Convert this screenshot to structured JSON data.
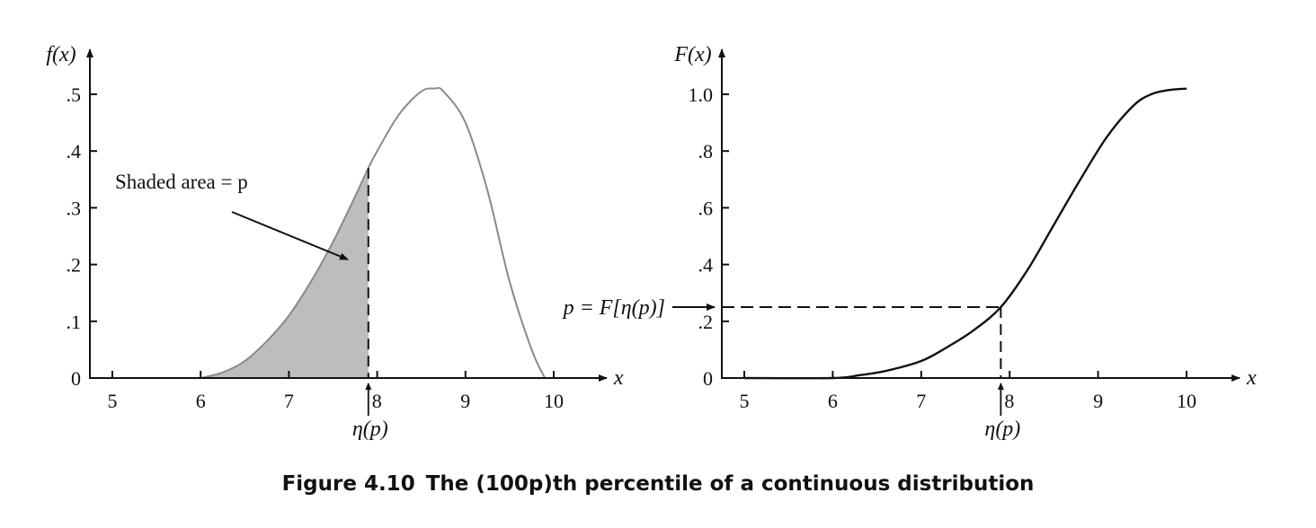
{
  "caption": {
    "number": "Figure 4.10",
    "text": "The (100p)th percentile of a continuous distribution"
  },
  "colors": {
    "shade": "#bdbdbd",
    "pdf_line": "#8a8a8a",
    "cdf_line": "#111111"
  },
  "chart_data": [
    {
      "type": "area",
      "panel": "pdf",
      "ylabel": "f(x)",
      "xlabel": "x",
      "xlim": [
        4.9,
        10.6
      ],
      "ylim": [
        0,
        0.55
      ],
      "x_ticks": [
        5,
        6,
        7,
        9,
        10
      ],
      "x_tick_labels": [
        "5",
        "6",
        "7",
        "9",
        "10"
      ],
      "y_ticks": [
        0,
        0.1,
        0.2,
        0.3,
        0.4,
        0.5
      ],
      "y_tick_labels": [
        "0",
        ".1",
        ".2",
        ".3",
        ".4",
        ".5"
      ],
      "marker_x": 7.9,
      "marker_x_tick_label": "8",
      "marker_label": "η(p)",
      "annotation": "Shaded area = p",
      "shaded_to_x": 7.9,
      "curve": {
        "x": [
          6.0,
          6.25,
          6.5,
          6.75,
          7.0,
          7.25,
          7.5,
          7.75,
          7.9,
          8.0,
          8.25,
          8.5,
          8.65,
          8.75,
          9.0,
          9.25,
          9.5,
          9.75,
          9.9
        ],
        "y": [
          0.0,
          0.01,
          0.03,
          0.065,
          0.11,
          0.17,
          0.24,
          0.32,
          0.37,
          0.4,
          0.465,
          0.505,
          0.51,
          0.505,
          0.45,
          0.33,
          0.17,
          0.05,
          0.0
        ]
      },
      "grid": false,
      "legend": "none"
    },
    {
      "type": "line",
      "panel": "cdf",
      "ylabel": "F(x)",
      "xlabel": "x",
      "xlim": [
        4.9,
        10.6
      ],
      "ylim": [
        0,
        1.1
      ],
      "x_ticks": [
        5,
        6,
        7,
        9,
        10
      ],
      "x_tick_labels": [
        "5",
        "6",
        "7",
        "9",
        "10"
      ],
      "y_ticks": [
        0,
        0.2,
        0.4,
        0.6,
        0.8,
        1.0
      ],
      "y_tick_labels": [
        "0",
        ".2",
        ".4",
        ".6",
        ".8",
        "1.0"
      ],
      "marker_x": 7.9,
      "marker_x_tick_label": "8",
      "marker_label": "η(p)",
      "p_value": 0.25,
      "p_label": "p = F[η(p)]",
      "curve": {
        "x": [
          5.0,
          6.0,
          6.3,
          6.6,
          7.0,
          7.3,
          7.6,
          7.9,
          8.2,
          8.5,
          8.8,
          9.1,
          9.4,
          9.6,
          9.8,
          10.0
        ],
        "y": [
          0.0,
          0.0,
          0.01,
          0.025,
          0.06,
          0.11,
          0.17,
          0.25,
          0.38,
          0.54,
          0.7,
          0.85,
          0.96,
          1.0,
          1.015,
          1.02
        ]
      },
      "grid": false,
      "legend": "none"
    }
  ]
}
